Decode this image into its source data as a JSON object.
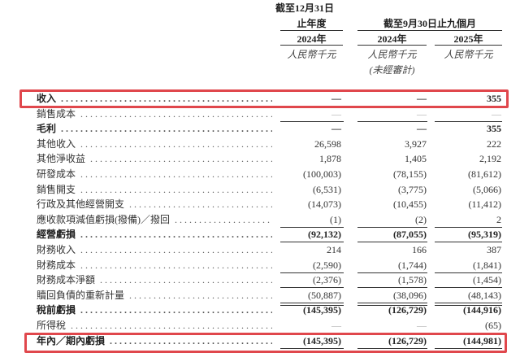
{
  "header": {
    "fy_period": "截至12月31日",
    "fy_label": "止年度",
    "nine_months": "截至9月30日止九個月",
    "years": [
      "2024年",
      "2024年",
      "2025年"
    ],
    "currency": [
      "人民幣千元",
      "人民幣千元",
      "人民幣千元"
    ],
    "unaudited": "(未經審計)"
  },
  "rows": [
    {
      "label": "收入",
      "bold": true,
      "values": [
        "—",
        "—",
        "355"
      ]
    },
    {
      "label": "銷售成本",
      "values": [
        "—",
        "—",
        "—"
      ]
    },
    {
      "label": "毛利",
      "bold": true,
      "values": [
        "—",
        "—",
        "355"
      ]
    },
    {
      "label": "其他收入",
      "values": [
        "26,598",
        "3,927",
        "222"
      ]
    },
    {
      "label": "其他淨收益",
      "values": [
        "1,878",
        "1,405",
        "2,192"
      ]
    },
    {
      "label": "研發成本",
      "values": [
        "(100,003)",
        "(78,155)",
        "(81,612)"
      ]
    },
    {
      "label": "銷售開支",
      "values": [
        "(6,531)",
        "(3,775)",
        "(5,066)"
      ]
    },
    {
      "label": "行政及其他經營開支",
      "values": [
        "(14,073)",
        "(10,455)",
        "(11,412)"
      ]
    },
    {
      "label": "應收款項減值虧損(撥備)／撥回",
      "values": [
        "(1)",
        "(2)",
        "2"
      ]
    },
    {
      "label": "經營虧損",
      "bold": true,
      "values": [
        "(92,132)",
        "(87,055)",
        "(95,319)"
      ]
    },
    {
      "label": "財務收入",
      "values": [
        "214",
        "166",
        "387"
      ]
    },
    {
      "label": "財務成本",
      "values": [
        "(2,590)",
        "(1,744)",
        "(1,841)"
      ]
    },
    {
      "label": "財務成本淨額",
      "values": [
        "(2,376)",
        "(1,578)",
        "(1,454)"
      ]
    },
    {
      "label": "贖回負債的重新計量",
      "values": [
        "(50,887)",
        "(38,096)",
        "(48,143)"
      ]
    },
    {
      "label": "稅前虧損",
      "bold": true,
      "values": [
        "(145,395)",
        "(126,729)",
        "(144,916)"
      ]
    },
    {
      "label": "所得稅",
      "values": [
        "—",
        "—",
        "(65)"
      ]
    },
    {
      "label": "年內／期內虧損",
      "bold": true,
      "values": [
        "(145,395)",
        "(126,729)",
        "(144,981)"
      ]
    }
  ],
  "highlight_color": "#e0474c"
}
